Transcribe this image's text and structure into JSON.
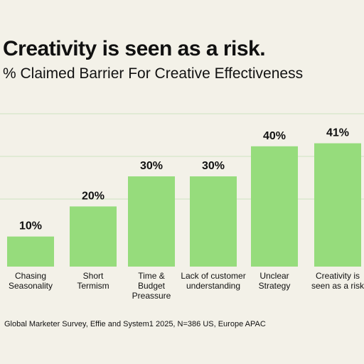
{
  "title": "Creativity is seen as a risk.",
  "subtitle": "% Claimed Barrier For Creative Effectiveness",
  "source": "Global Marketer Survey, Effie and System1 2025, N=386 US, Europe APAC",
  "colors": {
    "bar": "#96dc7c",
    "background": "#f3f1e8",
    "grid": "#cde3c0"
  },
  "chart_data": {
    "type": "bar",
    "title": "Creativity is seen as a risk.",
    "subtitle": "% Claimed Barrier For Creative Effectiveness",
    "categories": [
      [
        "Chasing",
        "Seasonality"
      ],
      [
        "Short",
        "Termism"
      ],
      [
        "Time &",
        "Budget",
        "Preassure"
      ],
      [
        "Lack of customer",
        "understanding"
      ],
      [
        "Unclear",
        "Strategy"
      ],
      [
        "Creativity is",
        "seen as a risk"
      ]
    ],
    "values": [
      10,
      20,
      30,
      30,
      40,
      41
    ],
    "value_labels": [
      "10%",
      "20%",
      "30%",
      "30%",
      "40%",
      "41%"
    ],
    "ylim": [
      0,
      52
    ],
    "grid": true
  }
}
